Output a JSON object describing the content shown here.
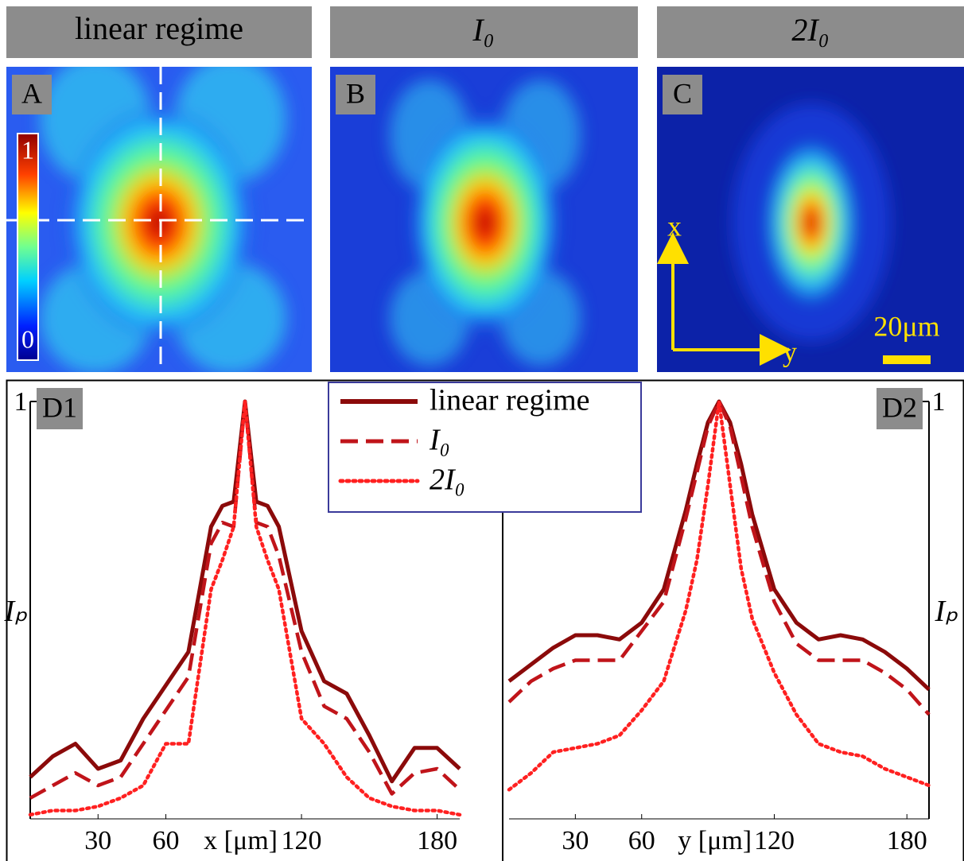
{
  "panels": [
    {
      "header": "linear regime",
      "letter": "A"
    },
    {
      "header": "I₀",
      "letter": "B"
    },
    {
      "header": "2I₀",
      "letter": "C"
    }
  ],
  "colorbar": {
    "max": "1",
    "min": "0"
  },
  "axes": {
    "x": "x",
    "y": "y"
  },
  "scale_bar": "20μm",
  "chart_data": [
    {
      "type": "line",
      "panel": "D1",
      "xlabel": "x [μm]",
      "ylabel": "Iₚ",
      "yaxis_side": "left",
      "x": [
        0,
        10,
        20,
        30,
        40,
        50,
        60,
        70,
        80,
        85,
        90,
        95,
        100,
        105,
        110,
        120,
        130,
        140,
        150,
        160,
        170,
        180,
        190
      ],
      "xlim": [
        0,
        190
      ],
      "ylim": [
        0,
        1
      ],
      "xticks": [
        30,
        60,
        120,
        180
      ],
      "yticks": [
        1
      ],
      "series": [
        {
          "name": "linear regime",
          "color": "#8b0a0a",
          "style": "solid",
          "values": [
            0.1,
            0.15,
            0.18,
            0.12,
            0.14,
            0.24,
            0.32,
            0.4,
            0.7,
            0.75,
            0.76,
            1.0,
            0.76,
            0.75,
            0.7,
            0.45,
            0.33,
            0.3,
            0.2,
            0.09,
            0.17,
            0.17,
            0.12
          ]
        },
        {
          "name": "I₀",
          "color": "#c0141a",
          "style": "dashed",
          "values": [
            0.05,
            0.08,
            0.11,
            0.08,
            0.1,
            0.18,
            0.26,
            0.34,
            0.66,
            0.71,
            0.7,
            1.0,
            0.71,
            0.7,
            0.63,
            0.4,
            0.27,
            0.24,
            0.16,
            0.06,
            0.11,
            0.12,
            0.07
          ]
        },
        {
          "name": "2I₀",
          "color": "#ff2020",
          "style": "dotted",
          "values": [
            0.01,
            0.02,
            0.02,
            0.03,
            0.05,
            0.08,
            0.18,
            0.18,
            0.55,
            0.62,
            0.7,
            1.0,
            0.7,
            0.62,
            0.55,
            0.24,
            0.18,
            0.1,
            0.05,
            0.03,
            0.02,
            0.02,
            0.01
          ]
        }
      ]
    },
    {
      "type": "line",
      "panel": "D2",
      "xlabel": "y [μm]",
      "ylabel": "Iₚ",
      "yaxis_side": "right",
      "x": [
        0,
        10,
        20,
        30,
        40,
        50,
        60,
        70,
        80,
        85,
        90,
        95,
        100,
        105,
        110,
        120,
        130,
        140,
        150,
        160,
        170,
        180,
        190
      ],
      "xlim": [
        0,
        190
      ],
      "ylim": [
        0,
        1
      ],
      "xticks": [
        30,
        60,
        120,
        180
      ],
      "yticks": [
        1
      ],
      "series": [
        {
          "color": "#8b0a0a",
          "style": "solid",
          "values": [
            0.33,
            0.37,
            0.41,
            0.44,
            0.44,
            0.43,
            0.47,
            0.55,
            0.74,
            0.85,
            0.95,
            1.0,
            0.95,
            0.85,
            0.73,
            0.55,
            0.47,
            0.43,
            0.44,
            0.43,
            0.4,
            0.36,
            0.31
          ]
        },
        {
          "color": "#c0141a",
          "style": "dashed",
          "values": [
            0.28,
            0.33,
            0.36,
            0.38,
            0.38,
            0.38,
            0.45,
            0.52,
            0.72,
            0.83,
            0.94,
            1.0,
            0.94,
            0.82,
            0.7,
            0.52,
            0.42,
            0.38,
            0.38,
            0.38,
            0.35,
            0.31,
            0.25
          ]
        },
        {
          "color": "#ff2020",
          "style": "dotted",
          "values": [
            0.07,
            0.11,
            0.16,
            0.17,
            0.18,
            0.2,
            0.26,
            0.33,
            0.5,
            0.62,
            0.8,
            1.0,
            0.8,
            0.6,
            0.48,
            0.35,
            0.25,
            0.18,
            0.16,
            0.15,
            0.12,
            0.1,
            0.08
          ]
        }
      ]
    }
  ]
}
